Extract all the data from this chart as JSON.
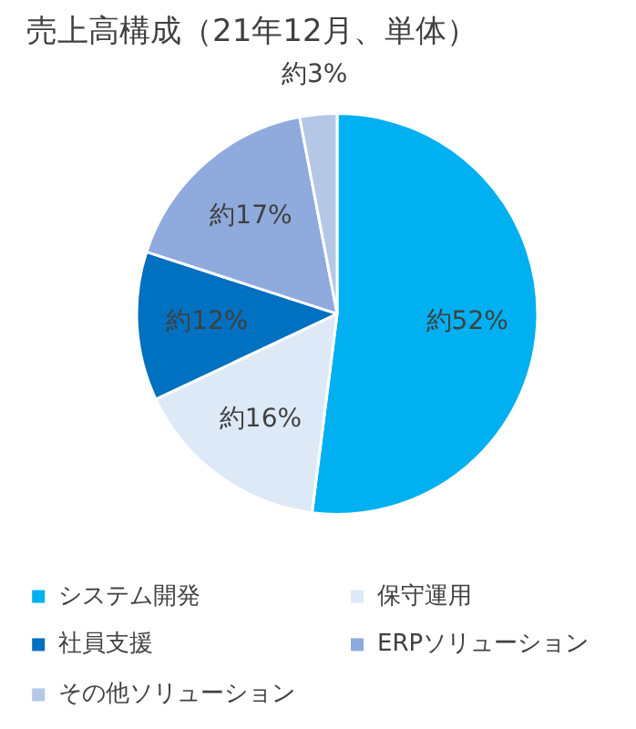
{
  "chart_data": {
    "type": "pie",
    "title": "売上高構成（21年12月、単体）",
    "categories": [
      "システム開発",
      "保守運用",
      "社員支援",
      "ERPソリューション",
      "その他ソリューション"
    ],
    "values": [
      52,
      16,
      12,
      17,
      3
    ],
    "colors": [
      "#00b0f0",
      "#dde9f7",
      "#0070c0",
      "#8faadc",
      "#b4c7e7"
    ],
    "value_labels": [
      "約52%",
      "約16%",
      "約12%",
      "約17%",
      "約3%"
    ],
    "legend": "bottom"
  }
}
